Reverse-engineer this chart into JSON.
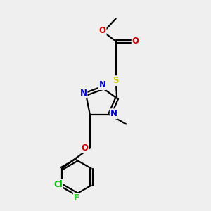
{
  "bg_color": "#efefef",
  "atoms": {
    "N": "#0000cc",
    "O": "#cc0000",
    "S": "#cccc00",
    "Cl": "#00bb00",
    "F": "#33cc33",
    "C": "#000000"
  },
  "lw": 1.6,
  "doffset": 0.055
}
